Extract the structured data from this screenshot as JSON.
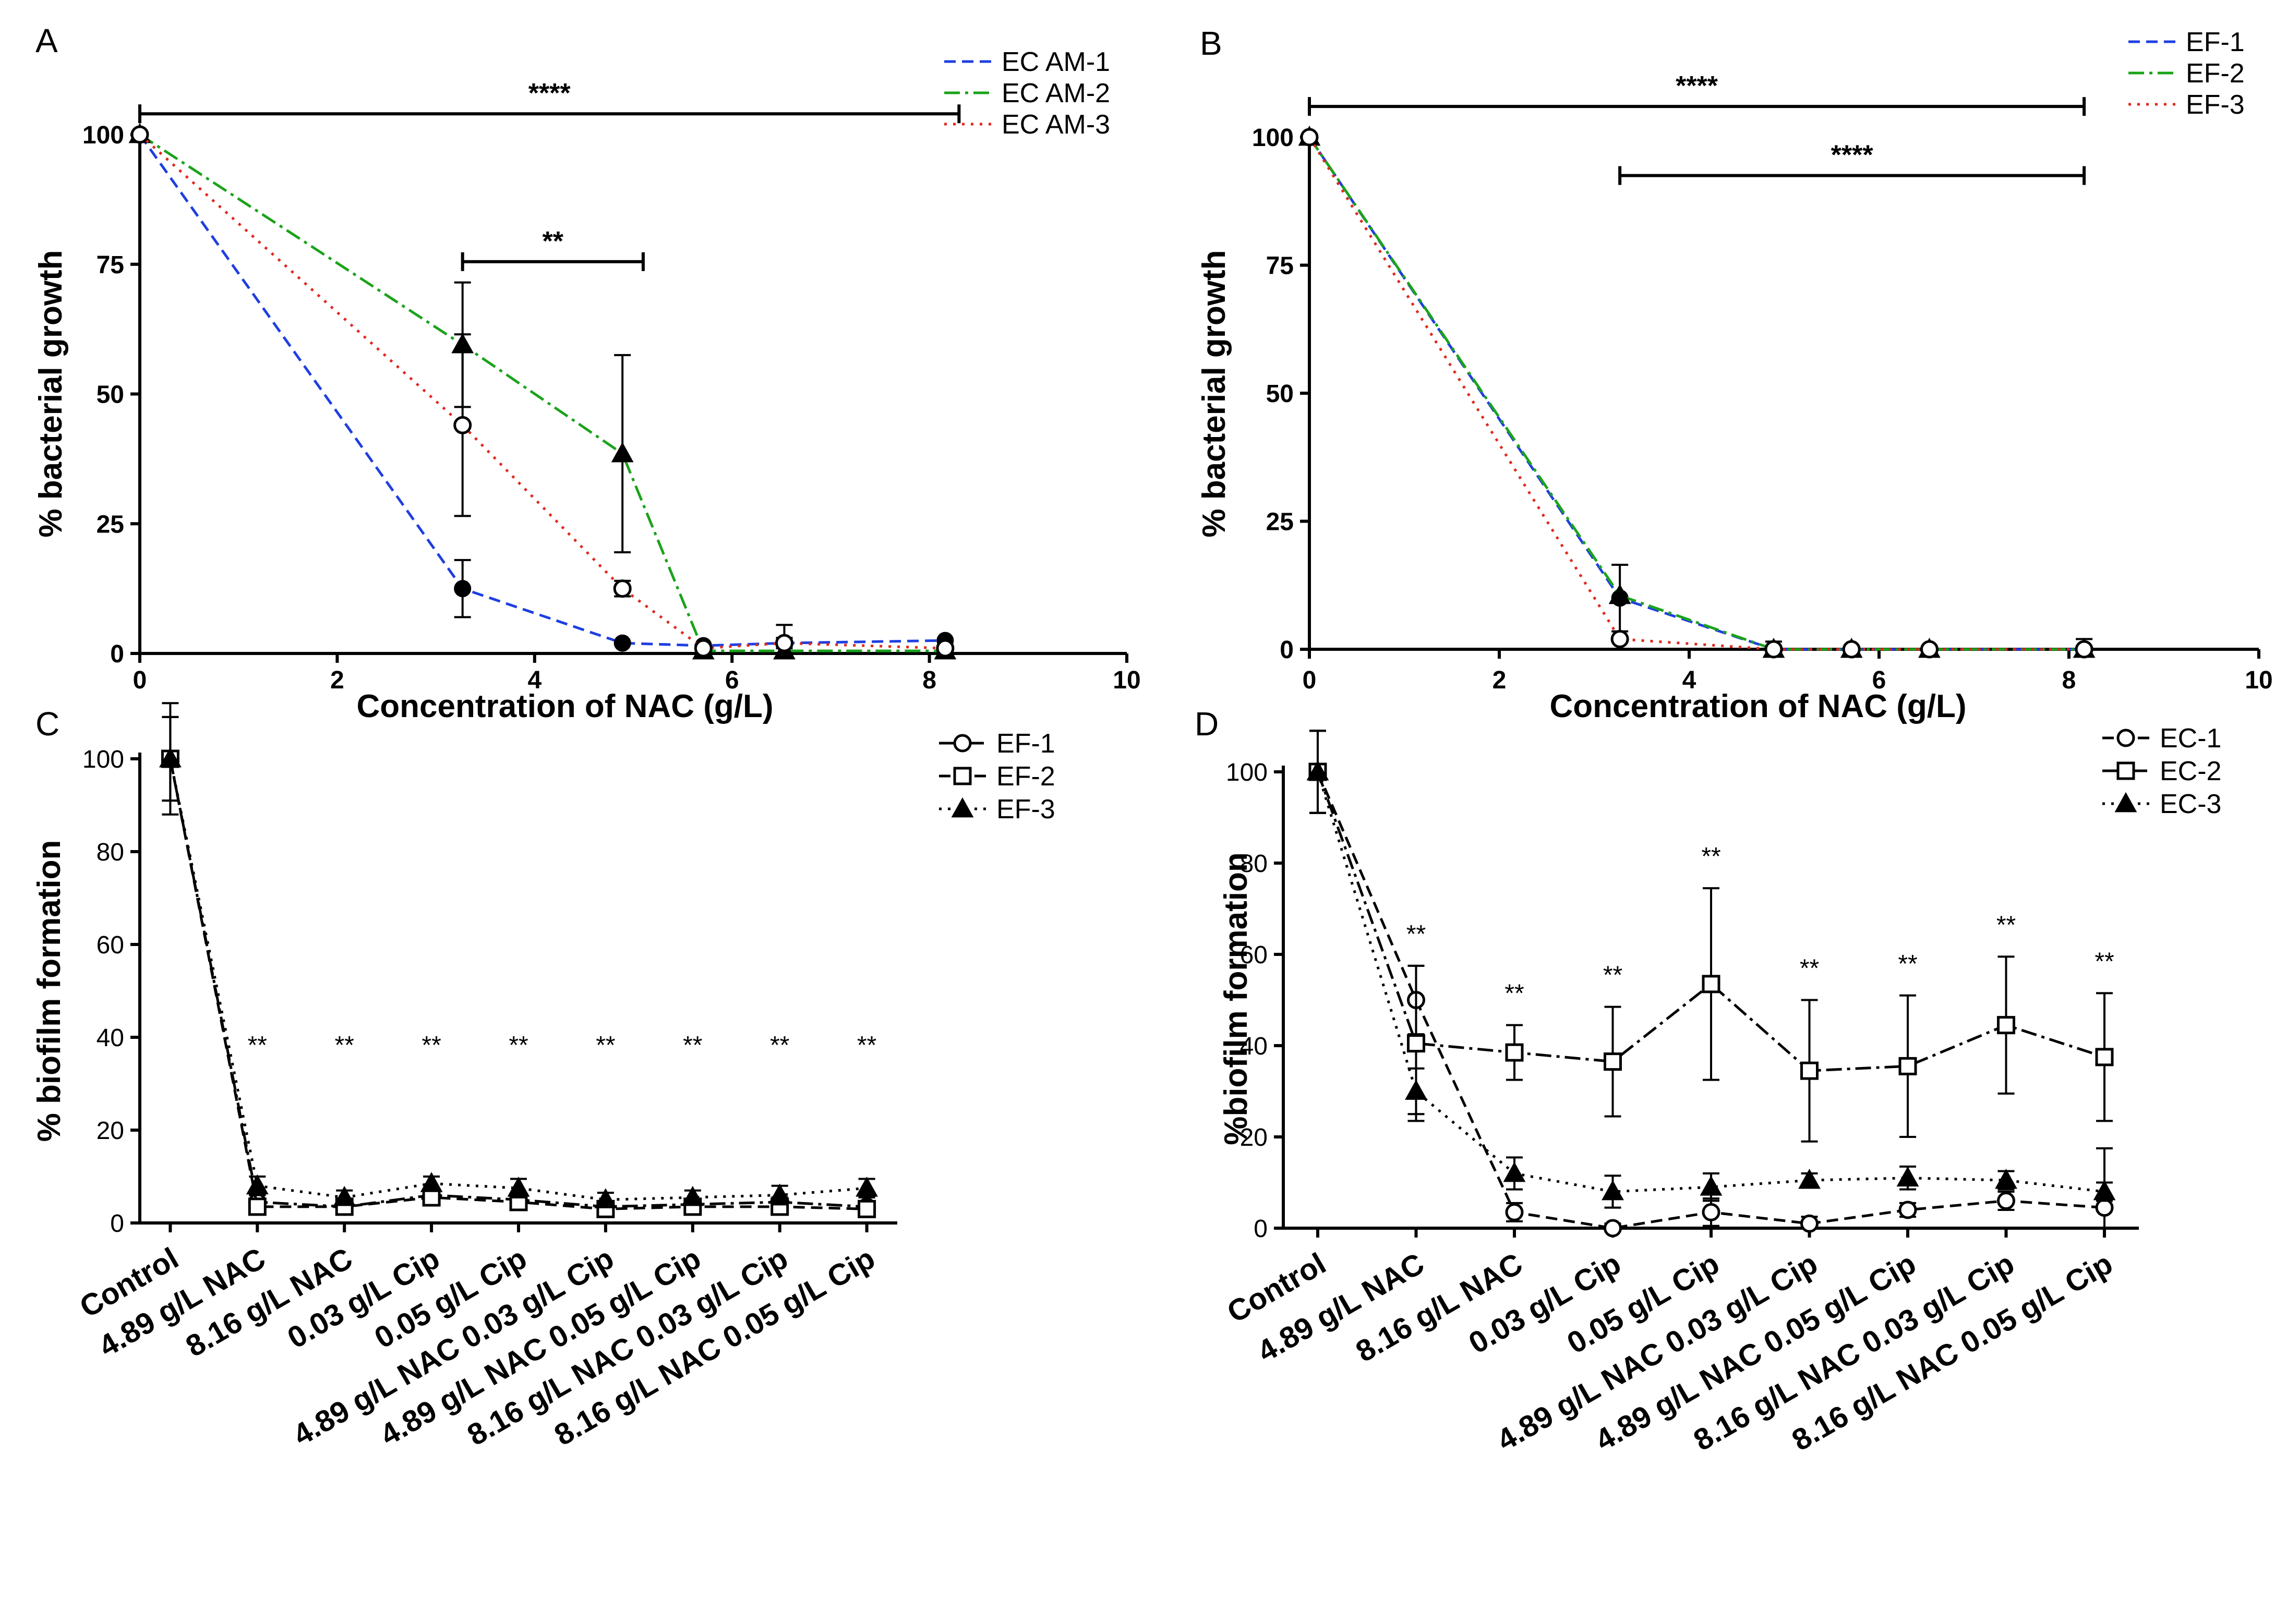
{
  "chart_data": [
    {
      "id": "A",
      "type": "line",
      "panel_label": "A",
      "xlabel": "Concentration of NAC (g/L)",
      "ylabel": "% bacterial growth",
      "xlim": [
        0,
        10
      ],
      "ylim": [
        0,
        100
      ],
      "xticks": [
        "0",
        "2",
        "4",
        "6",
        "8",
        "10"
      ],
      "yticks": [
        "0",
        "25",
        "50",
        "75",
        "100"
      ],
      "legend_position": "top-right",
      "series": [
        {
          "name": "EC AM-1",
          "color": "#1f3fe0",
          "dash": "dash",
          "marker": "dot",
          "x": [
            0,
            3.27,
            4.89,
            5.71,
            6.53,
            8.16
          ],
          "y": [
            100,
            12.5,
            2,
            1.5,
            2,
            2.5
          ],
          "err": [
            0,
            5.5,
            0,
            0,
            1,
            0
          ]
        },
        {
          "name": "EC AM-2",
          "color": "#1aa31a",
          "dash": "dashdot",
          "marker": "triangle",
          "x": [
            0,
            3.27,
            4.89,
            5.71,
            6.53,
            8.16
          ],
          "y": [
            100,
            59.5,
            38.5,
            0.5,
            0.5,
            0.5
          ],
          "err": [
            0,
            12,
            19,
            0,
            0,
            0
          ]
        },
        {
          "name": "EC AM-3",
          "color": "#e0281f",
          "dash": "dot",
          "marker": "circle",
          "x": [
            0,
            3.27,
            4.89,
            5.71,
            6.53,
            8.16
          ],
          "y": [
            100,
            44,
            12.5,
            1,
            2,
            1
          ],
          "err": [
            0,
            17.5,
            1.5,
            0,
            3.5,
            0
          ]
        }
      ],
      "significance": [
        {
          "label": "****",
          "x1": 0,
          "x2": 8.3,
          "y": 104
        },
        {
          "label": "**",
          "x1": 3.27,
          "x2": 5.1,
          "y": 75.5
        }
      ]
    },
    {
      "id": "B",
      "type": "line",
      "panel_label": "B",
      "xlabel": "Concentration of NAC (g/L)",
      "ylabel": "% bacterial growth",
      "xlim": [
        0,
        10
      ],
      "ylim": [
        0,
        100
      ],
      "xticks": [
        "0",
        "2",
        "4",
        "6",
        "8",
        "10"
      ],
      "yticks": [
        "0",
        "25",
        "50",
        "75",
        "100"
      ],
      "legend_position": "top-right",
      "series": [
        {
          "name": "EF-1",
          "color": "#1f3fe0",
          "dash": "dash",
          "marker": "dot",
          "x": [
            0,
            3.27,
            4.89,
            5.71,
            6.53,
            8.16
          ],
          "y": [
            100,
            10,
            0,
            0,
            0,
            0
          ],
          "err": [
            0,
            6.5,
            1.5,
            0,
            0,
            2
          ]
        },
        {
          "name": "EF-2",
          "color": "#1aa31a",
          "dash": "dashdot",
          "marker": "triangle",
          "x": [
            0,
            3.27,
            4.89,
            5.71,
            6.53,
            8.16
          ],
          "y": [
            100,
            10.5,
            0,
            0,
            0,
            0
          ],
          "err": [
            0,
            0,
            0,
            0,
            0,
            0
          ]
        },
        {
          "name": "EF-3",
          "color": "#e0281f",
          "dash": "dot",
          "marker": "circle",
          "x": [
            0,
            3.27,
            4.89,
            5.71,
            6.53,
            8.16
          ],
          "y": [
            100,
            2,
            0,
            0,
            0,
            0
          ],
          "err": [
            0,
            0,
            0,
            0,
            0,
            0
          ]
        }
      ],
      "significance": [
        {
          "label": "****",
          "x1": 0,
          "x2": 8.16,
          "y": 106
        },
        {
          "label": "****",
          "x1": 3.27,
          "x2": 8.16,
          "y": 92.5
        }
      ]
    },
    {
      "id": "C",
      "type": "line",
      "panel_label": "C",
      "ylabel": "% biofilm formation",
      "ylim": [
        0,
        100
      ],
      "yticks": [
        "0",
        "20",
        "40",
        "60",
        "80",
        "100"
      ],
      "categories": [
        "Control",
        "4.89 g/L NAC",
        "8.16 g/L NAC",
        "0.03 g/L Cip",
        "0.05 g/L Cip",
        "4.89 g/L NAC 0.03 g/L Cip",
        "4.89 g/L NAC 0.05 g/L Cip",
        "8.16 g/L NAC 0.03 g/L Cip",
        "8.16 g/L NAC 0.05 g/L Cip"
      ],
      "legend_position": "top-right",
      "series": [
        {
          "name": "EF-1",
          "marker": "circle",
          "dash": "dashdot",
          "color": "#000000",
          "values": [
            100,
            4.5,
            3.5,
            6,
            5,
            3.5,
            4,
            4.5,
            3.5
          ],
          "err": [
            9,
            1.5,
            1,
            1,
            1,
            1,
            1,
            1,
            1
          ]
        },
        {
          "name": "EF-2",
          "marker": "square",
          "dash": "dash",
          "color": "#000000",
          "values": [
            100,
            3.5,
            3.5,
            5.5,
            4.5,
            3,
            3.5,
            3.5,
            3
          ],
          "err": [
            12,
            1,
            1,
            1,
            1,
            1,
            1,
            1,
            1
          ]
        },
        {
          "name": "EF-3",
          "marker": "triangle",
          "dash": "dot",
          "color": "#000000",
          "values": [
            100,
            8,
            5.5,
            8.5,
            7.5,
            5,
            5.5,
            6,
            7.5
          ],
          "err": [
            9,
            2,
            1.5,
            1.5,
            2,
            1.5,
            1.5,
            2,
            2
          ]
        }
      ],
      "significance": [
        "",
        "**",
        "**",
        "**",
        "**",
        "**",
        "**",
        "**",
        "**"
      ]
    },
    {
      "id": "D",
      "type": "line",
      "panel_label": "D",
      "ylabel": "%biofilm formation",
      "ylim": [
        0,
        100
      ],
      "yticks": [
        "0",
        "20",
        "40",
        "60",
        "80",
        "100"
      ],
      "categories": [
        "Control",
        "4.89 g/L NAC",
        "8.16 g/L NAC",
        "0.03 g/L Cip",
        "0.05 g/L Cip",
        "4.89 g/L NAC 0.03 g/L Cip",
        "4.89 g/L NAC 0.05 g/L Cip",
        "8.16 g/L NAC 0.03 g/L Cip",
        "8.16 g/L NAC 0.05 g/L Cip"
      ],
      "legend_position": "top-right",
      "series": [
        {
          "name": "EC-1",
          "marker": "circle",
          "dash": "dash",
          "color": "#000000",
          "values": [
            100,
            50,
            3.5,
            0,
            3.5,
            1,
            4,
            6,
            4.5
          ],
          "err": [
            9,
            7.5,
            2,
            1,
            3,
            1.5,
            1.5,
            2,
            13
          ]
        },
        {
          "name": "EC-2",
          "marker": "square",
          "dash": "dashdot",
          "color": "#000000",
          "values": [
            100,
            40.5,
            38.5,
            36.5,
            53.5,
            34.5,
            35.5,
            44.5,
            37.5
          ],
          "err": [
            9,
            17,
            6,
            12,
            21,
            15.5,
            15.5,
            15,
            14
          ]
        },
        {
          "name": "EC-3",
          "marker": "triangle",
          "dash": "dot",
          "color": "#000000",
          "values": [
            100,
            30,
            12,
            8,
            9,
            10.5,
            11,
            10.5,
            8
          ],
          "err": [
            9,
            5,
            3.5,
            3.5,
            3,
            1.5,
            2.5,
            2,
            2
          ]
        }
      ],
      "significance": [
        "",
        "**",
        "**",
        "**",
        "**",
        "**",
        "**",
        "**",
        "**"
      ]
    }
  ]
}
